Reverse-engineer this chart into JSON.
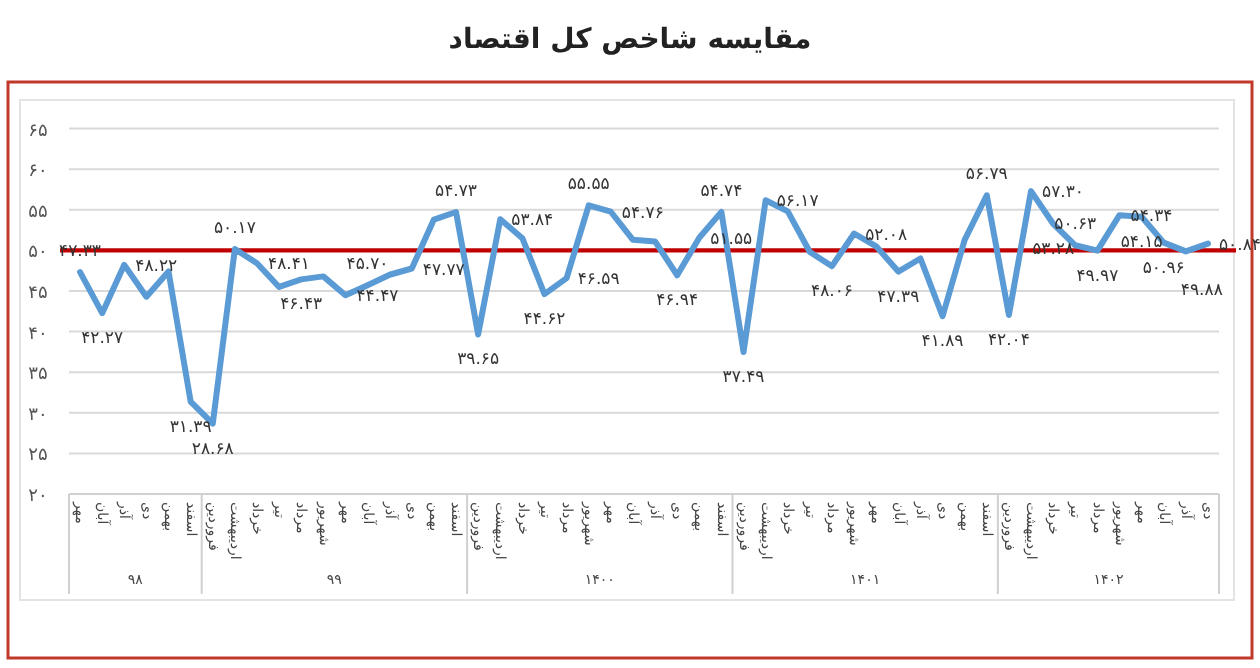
{
  "chart_data": {
    "type": "line",
    "title": "مقایسه شاخص کل اقتصاد",
    "categories": [
      "مهر",
      "آبان",
      "آذر",
      "دی",
      "بهمن",
      "اسفند",
      "فروردین",
      "اردیبهشت",
      "خرداد",
      "تیر",
      "مرداد",
      "شهریور",
      "مهر",
      "آبان",
      "آذر",
      "دی",
      "بهمن",
      "اسفند",
      "فروردین",
      "اردیبهشت",
      "خرداد",
      "تیر",
      "مرداد",
      "شهریور",
      "مهر",
      "آبان",
      "آذر",
      "دی",
      "بهمن",
      "اسفند",
      "فروردین",
      "اردیبهشت",
      "خرداد",
      "تیر",
      "مرداد",
      "شهریور",
      "مهر",
      "آبان",
      "آذر",
      "دی",
      "بهمن",
      "اسفند",
      "فروردین",
      "اردیبهشت",
      "خرداد",
      "تیر",
      "مرداد",
      "شهریور",
      "مهر",
      "آبان",
      "آذر",
      "دی"
    ],
    "series": [
      {
        "color": "#5b9bd5",
        "values": [
          47.33,
          42.27,
          48.22,
          44.3,
          47.4,
          31.39,
          28.68,
          50.17,
          48.41,
          45.5,
          46.43,
          46.8,
          44.47,
          45.7,
          47.0,
          47.77,
          53.8,
          54.73,
          39.65,
          53.84,
          51.5,
          44.62,
          46.59,
          55.55,
          54.76,
          51.3,
          51.1,
          46.94,
          51.55,
          54.74,
          37.49,
          56.17,
          54.8,
          49.8,
          48.06,
          52.08,
          50.5,
          47.39,
          49.0,
          41.89,
          51.3,
          56.79,
          42.04,
          57.3,
          53.28,
          50.63,
          49.97,
          54.34,
          54.15,
          50.96,
          49.88,
          50.84
        ],
        "value_labels": [
          "۴۷.۳۳",
          "۴۲.۲۷",
          "۴۸.۲۲",
          null,
          null,
          "۳۱.۳۹",
          "۲۸.۶۸",
          "۵۰.۱۷",
          "۴۸.۴۱",
          null,
          "۴۶.۴۳",
          null,
          "۴۴.۴۷",
          "۴۵.۷۰",
          null,
          "۴۷.۷۷",
          null,
          "۵۴.۷۳",
          "۳۹.۶۵",
          "۵۳.۸۴",
          null,
          "۴۴.۶۲",
          "۴۶.۵۹",
          "۵۵.۵۵",
          "۵۴.۷۶",
          null,
          null,
          "۴۶.۹۴",
          "۵۱.۵۵",
          "۵۴.۷۴",
          "۳۷.۴۹",
          "۵۶.۱۷",
          null,
          null,
          "۴۸.۰۶",
          "۵۲.۰۸",
          null,
          "۴۷.۳۹",
          null,
          "۴۱.۸۹",
          null,
          "۵۶.۷۹",
          "۴۲.۰۴",
          "۵۷.۳۰",
          "۵۳.۲۸",
          "۵۰.۶۳",
          "۴۹.۹۷",
          "۵۴.۳۴",
          "۵۴.۱۵",
          "۵۰.۹۶",
          "۴۹.۸۸",
          "۵۰.۸۴"
        ]
      }
    ],
    "ylim": [
      20,
      65
    ],
    "yticks": [
      {
        "value": 20,
        "label": "۲۰"
      },
      {
        "value": 25,
        "label": "۲۵"
      },
      {
        "value": 30,
        "label": "۳۰"
      },
      {
        "value": 35,
        "label": "۳۵"
      },
      {
        "value": 40,
        "label": "۴۰"
      },
      {
        "value": 45,
        "label": "۴۵"
      },
      {
        "value": 50,
        "label": "۵۰"
      },
      {
        "value": 55,
        "label": "۵۵"
      },
      {
        "value": 60,
        "label": "۶۰"
      },
      {
        "value": 65,
        "label": "۶۵"
      }
    ],
    "grid": "y",
    "ref_lines": [
      {
        "axis": "y",
        "value": 50,
        "color": "#c00000"
      }
    ],
    "annotations": [
      "۹۸",
      "۹۹",
      "۱۴۰۰",
      "۱۴۰۱",
      "۱۴۰۲"
    ]
  }
}
